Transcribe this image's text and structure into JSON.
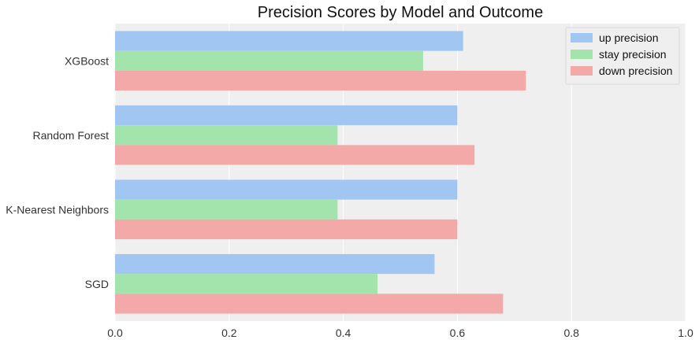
{
  "chart_data": {
    "type": "bar",
    "orientation": "horizontal",
    "title": "Precision Scores by Model and Outcome",
    "xlabel": "",
    "ylabel": "",
    "categories": [
      "XGBoost",
      "Random Forest",
      "K-Nearest Neighbors",
      "SGD"
    ],
    "series": [
      {
        "name": "up precision",
        "color": "#a1c6f2",
        "values": [
          0.61,
          0.6,
          0.6,
          0.56
        ]
      },
      {
        "name": "stay precision",
        "color": "#a3e4ad",
        "values": [
          0.54,
          0.39,
          0.39,
          0.46
        ]
      },
      {
        "name": "down precision",
        "color": "#f2a9a7",
        "values": [
          0.72,
          0.63,
          0.6,
          0.68
        ]
      }
    ],
    "xlim": [
      0,
      1
    ],
    "xticks": [
      "0.0",
      "0.2",
      "0.4",
      "0.6",
      "0.8",
      "1.0"
    ],
    "grid": true,
    "legend_position": "top-right",
    "plot_background": "#efefef"
  }
}
